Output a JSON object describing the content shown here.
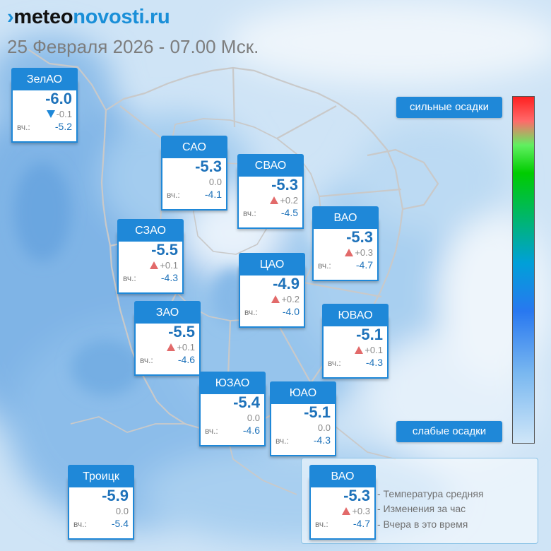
{
  "brand": {
    "logo_mark": "›",
    "logo_prefix": "meteo",
    "logo_suffix": "novosti.ru"
  },
  "date_line": "25 Февраля 2026 - 07.00 Мск.",
  "colorbar": {
    "top_label": "сильные осадки",
    "bottom_label": "слабые осадки",
    "colors": [
      "#ff2020",
      "#60f060",
      "#00a0d8",
      "#2878f0",
      "#cfe6f8"
    ]
  },
  "districts": [
    {
      "name": "ЗелАО",
      "temp": "-6.0",
      "change": "-0.1",
      "trend": "down",
      "yesterday_label": "вч.:",
      "yesterday": "-5.2"
    },
    {
      "name": "САО",
      "temp": "-5.3",
      "change": "0.0",
      "trend": "none",
      "yesterday_label": "вч.:",
      "yesterday": "-4.1"
    },
    {
      "name": "СВАО",
      "temp": "-5.3",
      "change": "+0.2",
      "trend": "up",
      "yesterday_label": "вч.:",
      "yesterday": "-4.5"
    },
    {
      "name": "ВАО",
      "temp": "-5.3",
      "change": "+0.3",
      "trend": "up",
      "yesterday_label": "вч.:",
      "yesterday": "-4.7"
    },
    {
      "name": "СЗАО",
      "temp": "-5.5",
      "change": "+0.1",
      "trend": "up",
      "yesterday_label": "вч.:",
      "yesterday": "-4.3"
    },
    {
      "name": "ЦАО",
      "temp": "-4.9",
      "change": "+0.2",
      "trend": "up",
      "yesterday_label": "вч.:",
      "yesterday": "-4.0"
    },
    {
      "name": "ЗАО",
      "temp": "-5.5",
      "change": "+0.1",
      "trend": "up",
      "yesterday_label": "вч.:",
      "yesterday": "-4.6"
    },
    {
      "name": "ЮВАО",
      "temp": "-5.1",
      "change": "+0.1",
      "trend": "up",
      "yesterday_label": "вч.:",
      "yesterday": "-4.3"
    },
    {
      "name": "ЮЗАО",
      "temp": "-5.4",
      "change": "0.0",
      "trend": "none",
      "yesterday_label": "вч.:",
      "yesterday": "-4.6"
    },
    {
      "name": "ЮАО",
      "temp": "-5.1",
      "change": "0.0",
      "trend": "none",
      "yesterday_label": "вч.:",
      "yesterday": "-4.3"
    },
    {
      "name": "Троицк",
      "temp": "-5.9",
      "change": "0.0",
      "trend": "none",
      "yesterday_label": "вч.:",
      "yesterday": "-5.4"
    }
  ],
  "legend": {
    "sample": {
      "name": "ВАО",
      "temp": "-5.3",
      "change": "+0.3",
      "trend": "up",
      "yesterday_label": "вч.:",
      "yesterday": "-4.7"
    },
    "descriptions": [
      "- Температура средняя",
      "- Изменения за час",
      "- Вчера в это время"
    ]
  }
}
